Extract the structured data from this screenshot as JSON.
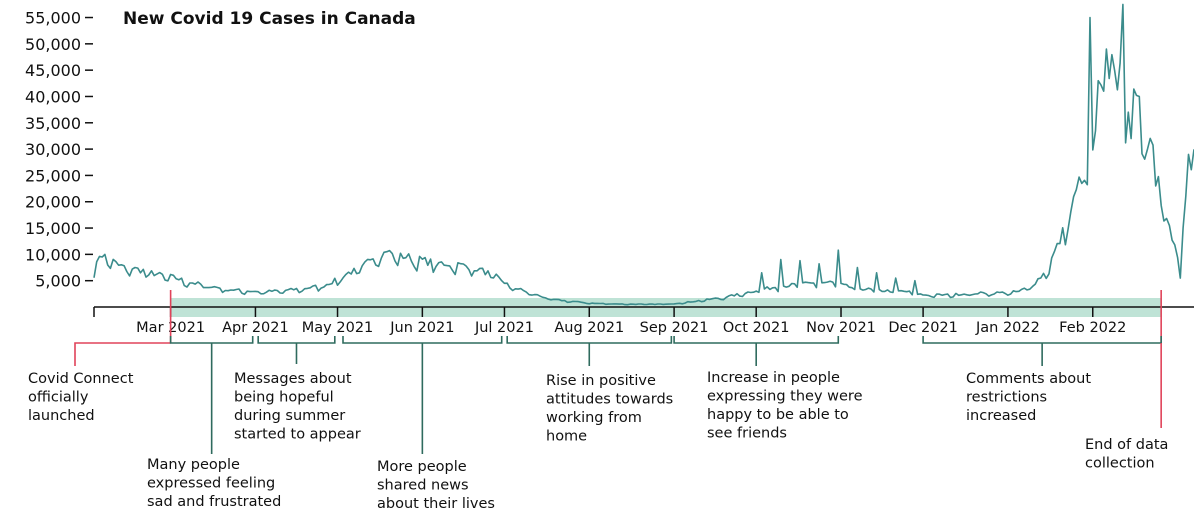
{
  "chart_data": {
    "type": "line",
    "title": "New Covid 19 Cases in Canada",
    "x_axis": {
      "type": "date",
      "range": [
        "2021-02-01",
        "2022-03-10"
      ],
      "ticks": [
        {
          "date": "2021-03-01",
          "label": "Mar 2021"
        },
        {
          "date": "2021-04-01",
          "label": "Apr 2021"
        },
        {
          "date": "2021-05-01",
          "label": "May 2021"
        },
        {
          "date": "2021-06-01",
          "label": "Jun 2021"
        },
        {
          "date": "2021-07-01",
          "label": "Jul 2021"
        },
        {
          "date": "2021-08-01",
          "label": "Aug 2021"
        },
        {
          "date": "2021-09-01",
          "label": "Sep 2021"
        },
        {
          "date": "2021-10-01",
          "label": "Oct 2021"
        },
        {
          "date": "2021-11-01",
          "label": "Nov 2021"
        },
        {
          "date": "2021-12-01",
          "label": "Dec 2021"
        },
        {
          "date": "2022-01-01",
          "label": "Jan 2022"
        },
        {
          "date": "2022-02-01",
          "label": "Feb 2022"
        }
      ]
    },
    "y_axis": {
      "range": [
        0,
        57000
      ],
      "ticks": [
        5000,
        10000,
        15000,
        20000,
        25000,
        30000,
        35000,
        40000,
        45000,
        50000,
        55000
      ],
      "tick_labels": [
        "5,000",
        "10,000",
        "15,000",
        "20,000",
        "25,000",
        "30,000",
        "35,000",
        "40,000",
        "45,000",
        "50,000",
        "55,000"
      ]
    },
    "grid": false,
    "series": [
      {
        "color": "#3b8c8c",
        "anchors": [
          [
            "2021-02-01",
            5800
          ],
          [
            "2021-02-03",
            9500
          ],
          [
            "2021-02-06",
            9000
          ],
          [
            "2021-02-10",
            7500
          ],
          [
            "2021-02-15",
            7000
          ],
          [
            "2021-02-20",
            6500
          ],
          [
            "2021-02-25",
            5800
          ],
          [
            "2021-03-01",
            5500
          ],
          [
            "2021-03-08",
            4500
          ],
          [
            "2021-03-15",
            3800
          ],
          [
            "2021-03-22",
            3200
          ],
          [
            "2021-03-29",
            2900
          ],
          [
            "2021-04-05",
            2800
          ],
          [
            "2021-04-12",
            3000
          ],
          [
            "2021-04-19",
            3400
          ],
          [
            "2021-04-26",
            3900
          ],
          [
            "2021-05-01",
            5000
          ],
          [
            "2021-05-05",
            6200
          ],
          [
            "2021-05-10",
            7000
          ],
          [
            "2021-05-14",
            9500
          ],
          [
            "2021-05-20",
            9800
          ],
          [
            "2021-05-27",
            9000
          ],
          [
            "2021-06-05",
            8000
          ],
          [
            "2021-06-12",
            7800
          ],
          [
            "2021-06-20",
            7200
          ],
          [
            "2021-06-28",
            5500
          ],
          [
            "2021-07-03",
            3800
          ],
          [
            "2021-07-10",
            2600
          ],
          [
            "2021-07-18",
            1400
          ],
          [
            "2021-07-26",
            1000
          ],
          [
            "2021-08-03",
            650
          ],
          [
            "2021-08-15",
            520
          ],
          [
            "2021-08-25",
            500
          ],
          [
            "2021-09-01",
            600
          ],
          [
            "2021-09-08",
            1000
          ],
          [
            "2021-09-20",
            1800
          ],
          [
            "2021-10-01",
            3000
          ],
          [
            "2021-10-10",
            3800
          ],
          [
            "2021-10-20",
            4200
          ],
          [
            "2021-10-28",
            4500
          ],
          [
            "2021-11-05",
            3500
          ],
          [
            "2021-11-15",
            3000
          ],
          [
            "2021-11-25",
            2800
          ],
          [
            "2021-12-01",
            2200
          ],
          [
            "2021-12-10",
            2200
          ],
          [
            "2021-12-20",
            2500
          ],
          [
            "2021-12-31",
            2600
          ],
          [
            "2022-01-05",
            2800
          ],
          [
            "2022-01-10",
            4000
          ],
          [
            "2022-01-15",
            6500
          ],
          [
            "2022-01-20",
            12000
          ],
          [
            "2022-01-25",
            19000
          ],
          [
            "2022-01-28",
            24000
          ],
          [
            "2022-02-02",
            30000
          ],
          [
            "2022-02-05",
            43000
          ],
          [
            "2022-02-08",
            44000
          ],
          [
            "2022-02-11",
            41000
          ],
          [
            "2022-02-14",
            38000
          ],
          [
            "2022-02-17",
            36000
          ],
          [
            "2022-02-20",
            34000
          ],
          [
            "2022-02-23",
            29000
          ],
          [
            "2022-02-26",
            22000
          ],
          [
            "2022-03-01",
            15000
          ],
          [
            "2022-03-04",
            9000
          ],
          [
            "2022-03-07",
            20000
          ],
          [
            "2022-03-10",
            28000
          ]
        ],
        "spikes": [
          [
            "2021-02-04",
            9500
          ],
          [
            "2021-05-19",
            10500
          ],
          [
            "2021-05-24",
            10200
          ],
          [
            "2021-10-03",
            6500
          ],
          [
            "2021-10-10",
            9000
          ],
          [
            "2021-10-17",
            8800
          ],
          [
            "2021-10-24",
            8200
          ],
          [
            "2021-10-31",
            10800
          ],
          [
            "2021-11-07",
            7500
          ],
          [
            "2021-11-14",
            6500
          ],
          [
            "2021-11-21",
            5500
          ],
          [
            "2021-11-28",
            5000
          ],
          [
            "2022-01-31",
            55000
          ],
          [
            "2022-02-03",
            43000
          ],
          [
            "2022-02-06",
            49000
          ],
          [
            "2022-02-09",
            45000
          ],
          [
            "2022-02-12",
            57500
          ],
          [
            "2022-02-15",
            32000
          ],
          [
            "2022-02-18",
            40000
          ],
          [
            "2022-02-21",
            30000
          ],
          [
            "2022-02-24",
            23000
          ],
          [
            "2022-03-01",
            15500
          ],
          [
            "2022-03-05",
            5500
          ],
          [
            "2022-03-08",
            29000
          ]
        ]
      }
    ],
    "highlight_periods": [
      {
        "start": "2021-03-01",
        "end": "2022-02-26",
        "color": "#bfe3d6"
      }
    ],
    "markers": [
      {
        "date": "2021-03-01",
        "color": "#e0435a"
      },
      {
        "date": "2022-02-26",
        "color": "#e0435a"
      }
    ],
    "annotations": [
      {
        "start": "2021-02-01",
        "end": "2021-03-01",
        "lines": [
          "Covid Connect",
          "officially",
          "launched"
        ]
      },
      {
        "start": "2021-03-01",
        "end": "2021-03-31",
        "lines": [
          "Many people",
          "expressed feeling",
          "sad and frustrated"
        ]
      },
      {
        "start": "2021-04-02",
        "end": "2021-04-30",
        "lines": [
          "Messages about",
          "being hopeful",
          "during summer",
          "started to appear"
        ]
      },
      {
        "start": "2021-05-03",
        "end": "2021-06-30",
        "lines": [
          "More people",
          "shared news",
          "about their lives"
        ]
      },
      {
        "start": "2021-07-02",
        "end": "2021-08-31",
        "lines": [
          "Rise in positive",
          "attitudes towards",
          "working from",
          "home"
        ]
      },
      {
        "start": "2021-09-01",
        "end": "2021-10-31",
        "lines": [
          "Increase in people",
          "expressing they were",
          "happy to be able to",
          "see friends"
        ]
      },
      {
        "start": "2021-12-01",
        "end": "2022-02-26",
        "lines": [
          "Comments about",
          "restrictions",
          "increased"
        ]
      },
      {
        "start": "2022-02-26",
        "end": "2022-02-26",
        "lines": [
          "End of data",
          "collection"
        ]
      }
    ]
  }
}
